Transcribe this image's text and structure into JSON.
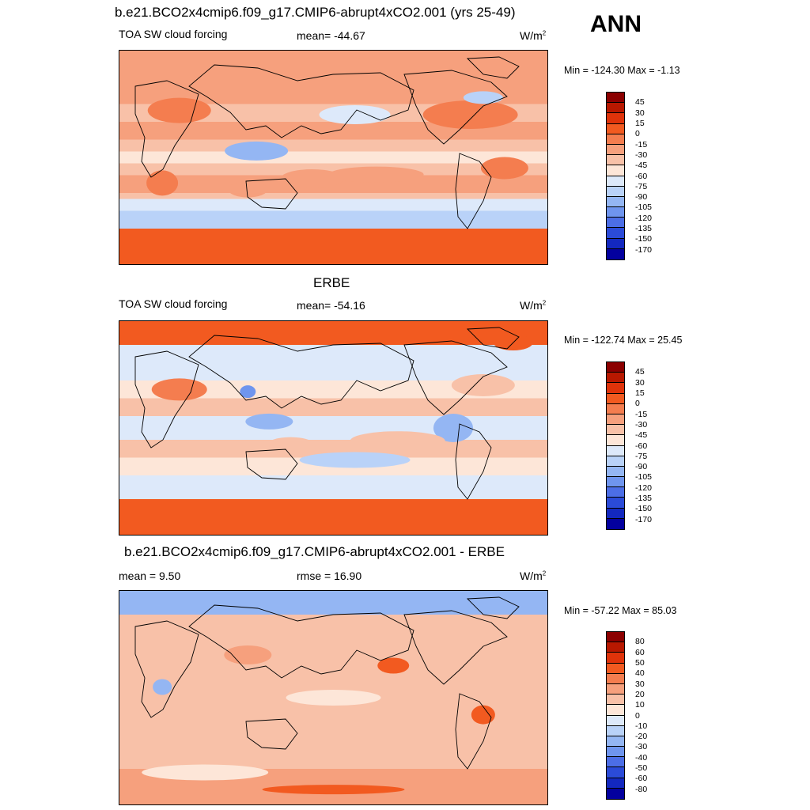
{
  "ann_label": "ANN",
  "colors": {
    "abs": [
      "#8b0000",
      "#b81800",
      "#e0330a",
      "#f25a20",
      "#f47d4f",
      "#f6a07d",
      "#f8c1a8",
      "#fde6d8",
      "#dde9fa",
      "#b9d2f8",
      "#94b6f3",
      "#6f95ee",
      "#4c6ee6",
      "#2b4bd8",
      "#1328bf",
      "#03009e"
    ],
    "diff": [
      "#8b0000",
      "#b81800",
      "#e0330a",
      "#f25a20",
      "#f47d4f",
      "#f6a07d",
      "#f8c1a8",
      "#fde6d8",
      "#dde9fa",
      "#b9d2f8",
      "#94b6f3",
      "#6f95ee",
      "#4c6ee6",
      "#2b4bd8",
      "#1328bf",
      "#03009e"
    ]
  },
  "panels": [
    {
      "title": "b.e21.BCO2x4cmip6.f09_g17.CMIP6-abrupt4xCO2.001 (yrs 25-49)",
      "left_label": "TOA SW cloud forcing",
      "center_label": "mean= -44.67",
      "units": "W/m",
      "units_sup": "2",
      "minmax": "Min = -124.30 Max =  -1.13",
      "ticks": [
        "45",
        "30",
        "15",
        "0",
        "-15",
        "-30",
        "-45",
        "-60",
        "-75",
        "-90",
        "-105",
        "-120",
        "-135",
        "-150",
        "-170"
      ],
      "field": "model"
    },
    {
      "title": "ERBE",
      "left_label": "TOA SW cloud forcing",
      "center_label": "mean= -54.16",
      "units": "W/m",
      "units_sup": "2",
      "minmax": "Min = -122.74 Max =  25.45",
      "ticks": [
        "45",
        "30",
        "15",
        "0",
        "-15",
        "-30",
        "-45",
        "-60",
        "-75",
        "-90",
        "-105",
        "-120",
        "-135",
        "-150",
        "-170"
      ],
      "field": "obs"
    },
    {
      "title": "b.e21.BCO2x4cmip6.f09_g17.CMIP6-abrupt4xCO2.001 - ERBE",
      "left_label": "mean =   9.50",
      "center_label": "rmse =  16.90",
      "units": "W/m",
      "units_sup": "2",
      "minmax": "Min = -57.22 Max =  85.03",
      "ticks": [
        "80",
        "60",
        "50",
        "40",
        "30",
        "20",
        "10",
        "0",
        "-10",
        "-20",
        "-30",
        "-40",
        "-50",
        "-60",
        "-80"
      ],
      "field": "diff"
    }
  ]
}
